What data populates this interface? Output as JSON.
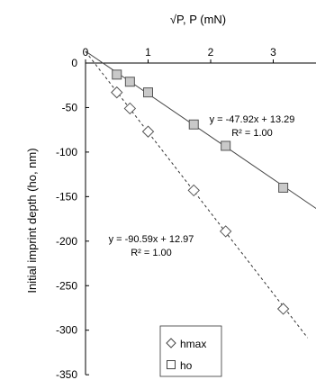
{
  "chart_data": {
    "type": "scatter",
    "xlabel": "√P, P (mN)",
    "ylabel": "Initial imprint depth (ho, nm)",
    "xlim": [
      0,
      3.7
    ],
    "ylim": [
      -350,
      0
    ],
    "x_ticks": [
      0,
      1,
      2,
      3
    ],
    "y_ticks": [
      0,
      -50,
      -100,
      -150,
      -200,
      -250,
      -300,
      -350
    ],
    "grid": false,
    "legend_position": "bottom-center",
    "series": [
      {
        "name": "hmax",
        "marker": "diamond",
        "line_style": "dashed",
        "x": [
          0.5,
          0.71,
          1.0,
          1.73,
          2.24,
          3.16
        ],
        "y": [
          -33,
          -51,
          -77,
          -143,
          -189,
          -276
        ],
        "fit": {
          "slope": -90.59,
          "intercept": 12.97,
          "x_range": [
            0.0,
            3.55
          ]
        },
        "equation": "y = -90.59x + 12.97",
        "r2": "R² = 1.00"
      },
      {
        "name": "ho",
        "marker": "square",
        "line_style": "solid",
        "x": [
          0.5,
          0.71,
          1.0,
          1.73,
          2.24,
          3.16
        ],
        "y": [
          -13,
          -21,
          -33,
          -69,
          -93,
          -140
        ],
        "fit": {
          "slope": -47.92,
          "intercept": 13.29,
          "x_range": [
            0.0,
            3.7
          ]
        },
        "equation": "y = -47.92x + 13.29",
        "r2": "R² = 1.00"
      }
    ]
  }
}
